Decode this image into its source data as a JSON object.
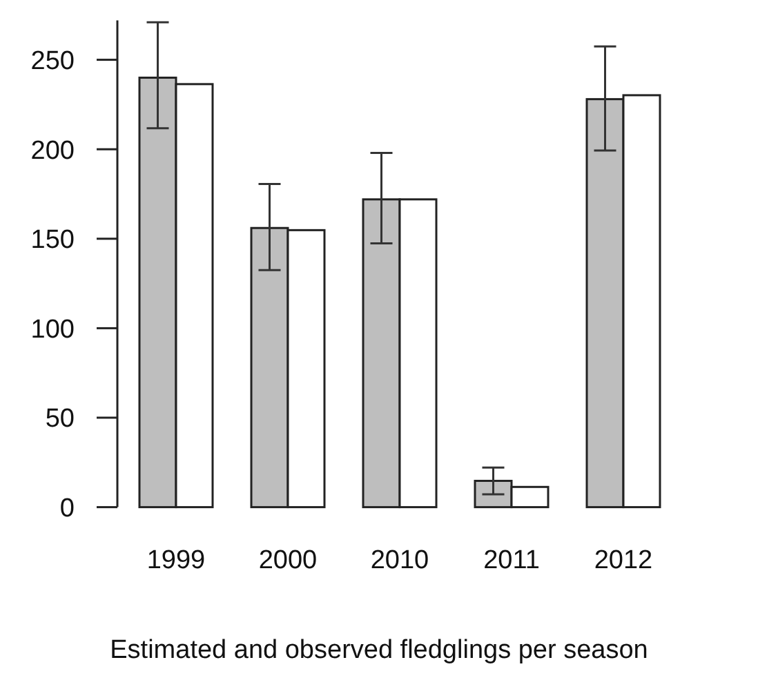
{
  "chart_data": {
    "type": "bar",
    "xlabel": "Estimated and observed fledglings per season",
    "categories": [
      "1999",
      "2000",
      "2010",
      "2011",
      "2012"
    ],
    "series": [
      {
        "color": "#bebebe",
        "values": [
          240,
          156,
          172,
          14.7,
          228
        ],
        "errors": [
          [
            211.7,
            271
          ],
          [
            132.5,
            180.6
          ],
          [
            147.4,
            198
          ],
          [
            7.2,
            22.1
          ],
          [
            199.3,
            257.5
          ]
        ]
      },
      {
        "color": "#ffffff",
        "values": [
          236.4,
          154.8,
          172,
          11.3,
          230.2
        ]
      }
    ],
    "ylim": [
      0,
      272
    ],
    "yticks": [
      0,
      50,
      100,
      150,
      200,
      250
    ]
  }
}
